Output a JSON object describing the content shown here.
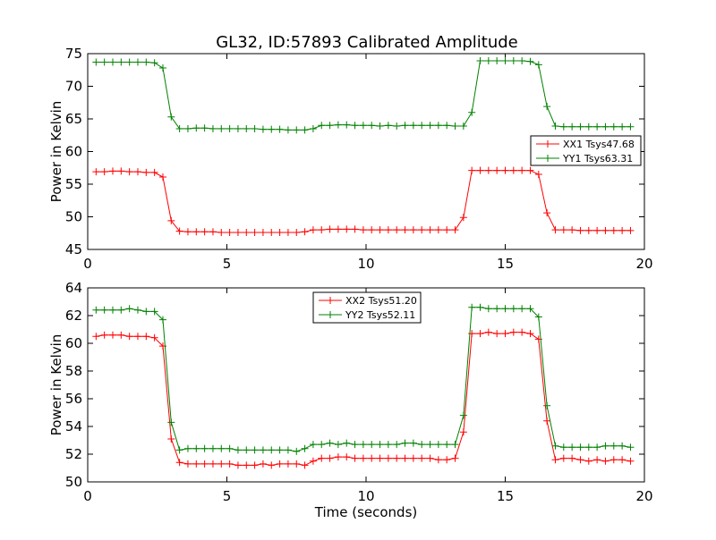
{
  "figure": {
    "title": "GL32, ID:57893 Calibrated Amplitude"
  },
  "chart_data": [
    {
      "type": "line",
      "title": "GL32, ID:57893 Calibrated Amplitude",
      "xlabel": "",
      "ylabel": "Power in Kelvin",
      "xlim": [
        0,
        20
      ],
      "ylim": [
        45,
        75
      ],
      "xticks": [
        0,
        5,
        10,
        15,
        20
      ],
      "yticks": [
        45,
        50,
        55,
        60,
        65,
        70,
        75
      ],
      "grid": false,
      "legend_position": "center-right",
      "x": [
        0.3,
        0.6,
        0.9,
        1.2,
        1.5,
        1.8,
        2.1,
        2.4,
        2.7,
        3.0,
        3.3,
        3.6,
        3.9,
        4.2,
        4.5,
        4.8,
        5.1,
        5.4,
        5.7,
        6.0,
        6.3,
        6.6,
        6.9,
        7.2,
        7.5,
        7.8,
        8.1,
        8.4,
        8.7,
        9.0,
        9.3,
        9.6,
        9.9,
        10.2,
        10.5,
        10.8,
        11.1,
        11.4,
        11.7,
        12.0,
        12.3,
        12.6,
        12.9,
        13.2,
        13.5,
        13.8,
        14.1,
        14.4,
        14.7,
        15.0,
        15.3,
        15.6,
        15.9,
        16.2,
        16.5,
        16.8,
        17.1,
        17.4,
        17.7,
        18.0,
        18.3,
        18.6,
        18.9,
        19.2,
        19.5
      ],
      "series": [
        {
          "name": "XX1 Tsys47.68",
          "color": "#ff0000",
          "values": [
            56.9,
            56.9,
            57.0,
            57.0,
            56.9,
            56.9,
            56.8,
            56.8,
            56.1,
            49.4,
            47.8,
            47.7,
            47.7,
            47.7,
            47.7,
            47.6,
            47.6,
            47.6,
            47.6,
            47.6,
            47.6,
            47.6,
            47.6,
            47.6,
            47.6,
            47.7,
            48.0,
            48.0,
            48.1,
            48.1,
            48.1,
            48.1,
            48.0,
            48.0,
            48.0,
            48.0,
            48.0,
            48.0,
            48.0,
            48.0,
            48.0,
            48.0,
            48.0,
            48.0,
            49.9,
            57.1,
            57.1,
            57.1,
            57.1,
            57.1,
            57.1,
            57.1,
            57.1,
            56.5,
            50.6,
            48.0,
            48.0,
            48.0,
            47.9,
            47.9,
            47.9,
            47.9,
            47.9,
            47.9,
            47.9
          ]
        },
        {
          "name": "YY1 Tsys63.31",
          "color": "#008000",
          "values": [
            73.7,
            73.7,
            73.7,
            73.7,
            73.7,
            73.7,
            73.7,
            73.6,
            72.8,
            65.3,
            63.5,
            63.5,
            63.6,
            63.6,
            63.5,
            63.5,
            63.5,
            63.5,
            63.5,
            63.5,
            63.4,
            63.4,
            63.4,
            63.3,
            63.3,
            63.3,
            63.5,
            64.0,
            64.0,
            64.1,
            64.1,
            64.0,
            64.0,
            64.0,
            63.9,
            64.0,
            63.9,
            64.0,
            64.0,
            64.0,
            64.0,
            64.0,
            64.0,
            63.9,
            63.9,
            66.0,
            73.9,
            73.9,
            73.9,
            73.9,
            73.9,
            73.9,
            73.8,
            73.3,
            66.9,
            63.9,
            63.8,
            63.8,
            63.8,
            63.8,
            63.8,
            63.8,
            63.8,
            63.8,
            63.8
          ]
        }
      ]
    },
    {
      "type": "line",
      "title": "",
      "xlabel": "Time (seconds)",
      "ylabel": "Power in Kelvin",
      "xlim": [
        0,
        20
      ],
      "ylim": [
        50,
        64
      ],
      "xticks": [
        0,
        5,
        10,
        15,
        20
      ],
      "yticks": [
        50,
        52,
        54,
        56,
        58,
        60,
        62,
        64
      ],
      "grid": false,
      "legend_position": "top-center",
      "x": [
        0.3,
        0.6,
        0.9,
        1.2,
        1.5,
        1.8,
        2.1,
        2.4,
        2.7,
        3.0,
        3.3,
        3.6,
        3.9,
        4.2,
        4.5,
        4.8,
        5.1,
        5.4,
        5.7,
        6.0,
        6.3,
        6.6,
        6.9,
        7.2,
        7.5,
        7.8,
        8.1,
        8.4,
        8.7,
        9.0,
        9.3,
        9.6,
        9.9,
        10.2,
        10.5,
        10.8,
        11.1,
        11.4,
        11.7,
        12.0,
        12.3,
        12.6,
        12.9,
        13.2,
        13.5,
        13.8,
        14.1,
        14.4,
        14.7,
        15.0,
        15.3,
        15.6,
        15.9,
        16.2,
        16.5,
        16.8,
        17.1,
        17.4,
        17.7,
        18.0,
        18.3,
        18.6,
        18.9,
        19.2,
        19.5
      ],
      "series": [
        {
          "name": "XX2 Tsys51.20",
          "color": "#ff0000",
          "values": [
            60.5,
            60.6,
            60.6,
            60.6,
            60.5,
            60.5,
            60.5,
            60.4,
            59.8,
            53.1,
            51.4,
            51.3,
            51.3,
            51.3,
            51.3,
            51.3,
            51.3,
            51.2,
            51.2,
            51.2,
            51.3,
            51.2,
            51.3,
            51.3,
            51.3,
            51.2,
            51.5,
            51.7,
            51.7,
            51.8,
            51.8,
            51.7,
            51.7,
            51.7,
            51.7,
            51.7,
            51.7,
            51.7,
            51.7,
            51.7,
            51.7,
            51.6,
            51.6,
            51.7,
            53.6,
            60.7,
            60.7,
            60.8,
            60.7,
            60.7,
            60.8,
            60.8,
            60.7,
            60.3,
            54.4,
            51.6,
            51.7,
            51.7,
            51.6,
            51.5,
            51.6,
            51.5,
            51.6,
            51.6,
            51.5
          ]
        },
        {
          "name": "YY2 Tsys52.11",
          "color": "#008000",
          "values": [
            62.4,
            62.4,
            62.4,
            62.4,
            62.5,
            62.4,
            62.3,
            62.3,
            61.7,
            54.3,
            52.3,
            52.4,
            52.4,
            52.4,
            52.4,
            52.4,
            52.4,
            52.3,
            52.3,
            52.3,
            52.3,
            52.3,
            52.3,
            52.3,
            52.2,
            52.4,
            52.7,
            52.7,
            52.8,
            52.7,
            52.8,
            52.7,
            52.7,
            52.7,
            52.7,
            52.7,
            52.7,
            52.8,
            52.8,
            52.7,
            52.7,
            52.7,
            52.7,
            52.7,
            54.8,
            62.6,
            62.6,
            62.5,
            62.5,
            62.5,
            62.5,
            62.5,
            62.5,
            61.9,
            55.5,
            52.6,
            52.5,
            52.5,
            52.5,
            52.5,
            52.5,
            52.6,
            52.6,
            52.6,
            52.5
          ]
        }
      ]
    }
  ]
}
